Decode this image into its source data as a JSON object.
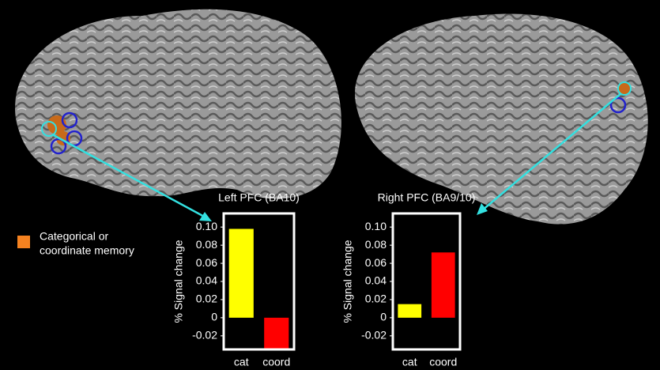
{
  "chart_data": [
    {
      "type": "bar",
      "title": "Left PFC (BA10)",
      "y_label": "% Signal change",
      "categories": [
        "cat",
        "coord"
      ],
      "values": [
        0.098,
        -0.034
      ],
      "colors": [
        "#ffff00",
        "#ff0000"
      ],
      "ylim": [
        -0.035,
        0.115
      ],
      "yticks": [
        -0.02,
        0,
        0.02,
        0.04,
        0.06,
        0.08,
        {
          "value": 0.1,
          "label": "0.10"
        }
      ]
    },
    {
      "type": "bar",
      "title": "Right PFC (BA9/10)",
      "y_label": "% Signal change",
      "categories": [
        "cat",
        "coord"
      ],
      "values": [
        0.015,
        0.072
      ],
      "colors": [
        "#ffff00",
        "#ff0000"
      ],
      "ylim": [
        -0.035,
        0.115
      ],
      "yticks": [
        -0.02,
        0,
        0.02,
        0.04,
        0.06,
        0.08,
        {
          "value": 0.1,
          "label": "0.10"
        }
      ]
    }
  ],
  "legend": {
    "label_line1": "Categorical or",
    "label_line2": "coordinate memory",
    "color": "#f58220"
  }
}
